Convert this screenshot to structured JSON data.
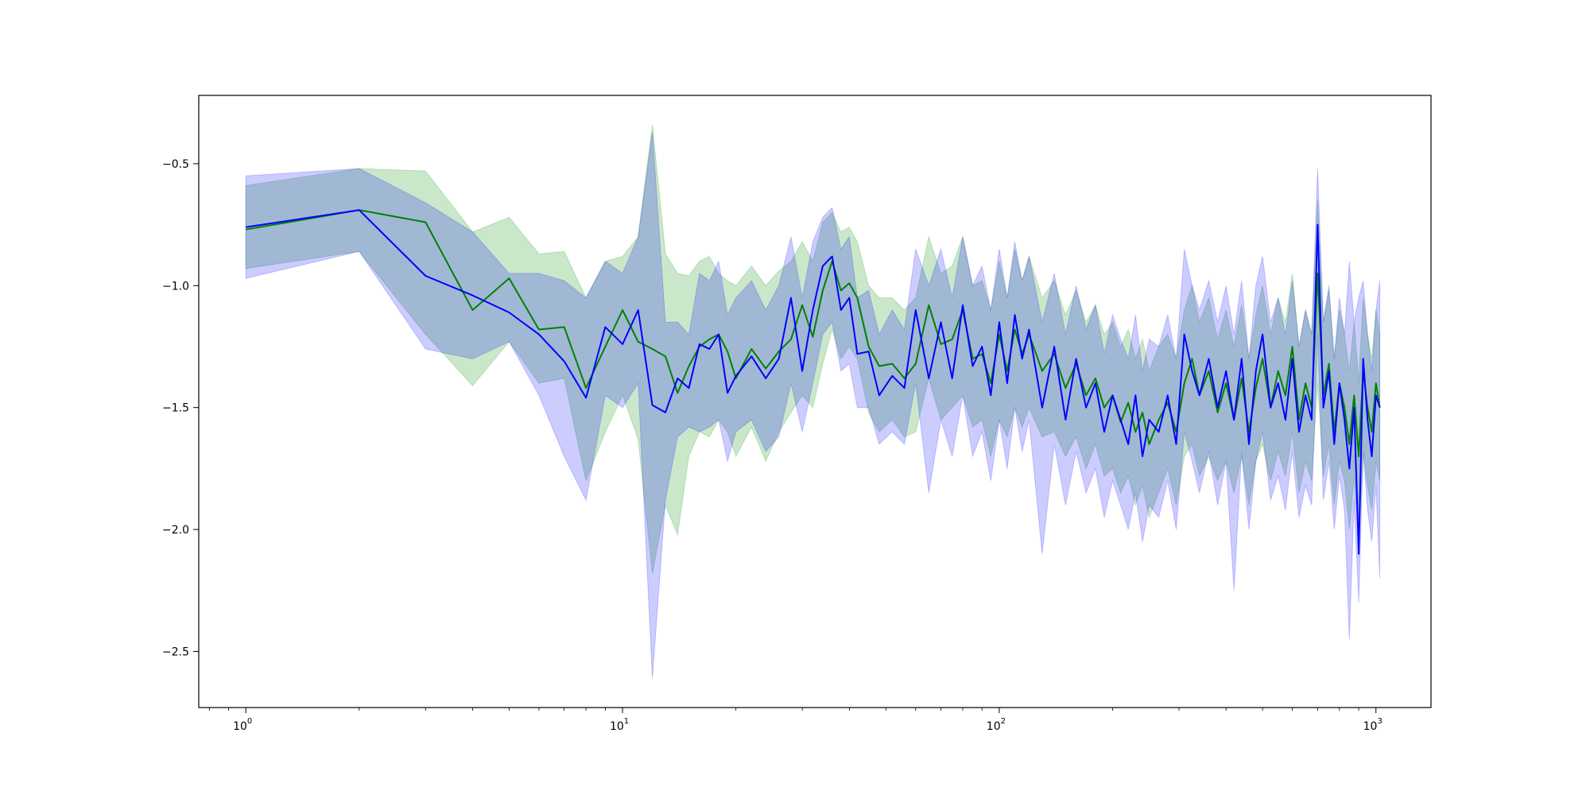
{
  "chart_data": {
    "type": "line",
    "title": "",
    "xlabel": "",
    "ylabel": "",
    "xscale": "log",
    "xlim": [
      0.75,
      1400
    ],
    "ylim": [
      -2.73,
      -0.22
    ],
    "grid": false,
    "legend": "none",
    "x_ticks": [
      {
        "base": "10",
        "exp": "0",
        "value": 1
      },
      {
        "base": "10",
        "exp": "1",
        "value": 10
      },
      {
        "base": "10",
        "exp": "2",
        "value": 100
      },
      {
        "base": "10",
        "exp": "3",
        "value": 1000
      }
    ],
    "y_ticks": [
      {
        "label": "−0.5",
        "value": -0.5
      },
      {
        "label": "−1.0",
        "value": -1.0
      },
      {
        "label": "−1.5",
        "value": -1.5
      },
      {
        "label": "−2.0",
        "value": -2.0
      },
      {
        "label": "−2.5",
        "value": -2.5
      }
    ],
    "series": [
      {
        "color": "#008000",
        "band_color": "#2ca02c",
        "band_opacity": 0.25,
        "x": [
          1,
          2,
          3,
          4,
          5,
          6,
          7,
          8,
          9,
          10,
          11,
          12,
          13,
          14,
          15,
          16,
          17,
          18,
          19,
          20,
          22,
          24,
          26,
          28,
          30,
          32,
          34,
          36,
          38,
          40,
          42,
          45,
          48,
          52,
          56,
          60,
          65,
          70,
          75,
          80,
          85,
          90,
          95,
          100,
          105,
          110,
          115,
          120,
          130,
          140,
          150,
          160,
          170,
          180,
          190,
          200,
          210,
          220,
          230,
          240,
          250,
          265,
          280,
          295,
          310,
          325,
          340,
          360,
          380,
          400,
          420,
          440,
          460,
          480,
          500,
          525,
          550,
          575,
          600,
          625,
          650,
          675,
          700,
          725,
          750,
          775,
          800,
          825,
          850,
          875,
          900,
          925,
          950,
          975,
          1000,
          1024
        ],
        "y": [
          -0.77,
          -0.69,
          -0.74,
          -1.1,
          -0.97,
          -1.18,
          -1.17,
          -1.42,
          -1.25,
          -1.1,
          -1.23,
          -1.26,
          -1.29,
          -1.44,
          -1.33,
          -1.25,
          -1.22,
          -1.2,
          -1.27,
          -1.38,
          -1.26,
          -1.34,
          -1.27,
          -1.22,
          -1.08,
          -1.21,
          -1.02,
          -0.9,
          -1.02,
          -0.99,
          -1.05,
          -1.25,
          -1.33,
          -1.32,
          -1.38,
          -1.32,
          -1.08,
          -1.24,
          -1.22,
          -1.1,
          -1.3,
          -1.28,
          -1.4,
          -1.2,
          -1.35,
          -1.18,
          -1.28,
          -1.2,
          -1.35,
          -1.28,
          -1.42,
          -1.32,
          -1.45,
          -1.38,
          -1.5,
          -1.45,
          -1.56,
          -1.48,
          -1.6,
          -1.52,
          -1.65,
          -1.55,
          -1.48,
          -1.6,
          -1.4,
          -1.3,
          -1.45,
          -1.35,
          -1.52,
          -1.4,
          -1.55,
          -1.38,
          -1.6,
          -1.42,
          -1.3,
          -1.5,
          -1.35,
          -1.45,
          -1.25,
          -1.55,
          -1.4,
          -1.5,
          -0.95,
          -1.45,
          -1.32,
          -1.6,
          -1.4,
          -1.5,
          -1.65,
          -1.45,
          -1.7,
          -1.35,
          -1.5,
          -1.6,
          -1.4,
          -1.5
        ],
        "y_lower": [
          -0.93,
          -0.86,
          -1.2,
          -1.41,
          -1.23,
          -1.4,
          -1.38,
          -1.8,
          -1.6,
          -1.45,
          -1.63,
          -2.18,
          -1.9,
          -2.02,
          -1.7,
          -1.6,
          -1.62,
          -1.55,
          -1.6,
          -1.7,
          -1.58,
          -1.72,
          -1.6,
          -1.52,
          -1.45,
          -1.5,
          -1.32,
          -1.18,
          -1.3,
          -1.25,
          -1.3,
          -1.52,
          -1.6,
          -1.55,
          -1.62,
          -1.6,
          -1.38,
          -1.55,
          -1.5,
          -1.45,
          -1.58,
          -1.55,
          -1.7,
          -1.55,
          -1.62,
          -1.5,
          -1.58,
          -1.5,
          -1.62,
          -1.6,
          -1.7,
          -1.62,
          -1.75,
          -1.65,
          -1.78,
          -1.75,
          -1.85,
          -1.78,
          -1.9,
          -1.82,
          -1.95,
          -1.85,
          -1.75,
          -1.9,
          -1.7,
          -1.65,
          -1.78,
          -1.7,
          -1.8,
          -1.72,
          -1.85,
          -1.7,
          -1.9,
          -1.72,
          -1.65,
          -1.8,
          -1.68,
          -1.78,
          -1.6,
          -1.85,
          -1.72,
          -1.8,
          -1.4,
          -1.78,
          -1.65,
          -1.9,
          -1.72,
          -1.8,
          -2.0,
          -1.78,
          -2.05,
          -1.68,
          -1.82,
          -1.92,
          -1.72,
          -1.8
        ],
        "y_upper": [
          -0.59,
          -0.52,
          -0.53,
          -0.78,
          -0.72,
          -0.87,
          -0.86,
          -1.05,
          -0.9,
          -0.88,
          -0.8,
          -0.34,
          -0.87,
          -0.95,
          -0.96,
          -0.9,
          -0.88,
          -0.95,
          -0.98,
          -1.0,
          -0.92,
          -1.0,
          -0.94,
          -0.9,
          -0.82,
          -0.9,
          -0.74,
          -0.7,
          -0.78,
          -0.76,
          -0.82,
          -1.0,
          -1.05,
          -1.05,
          -1.1,
          -1.05,
          -0.8,
          -0.95,
          -0.92,
          -0.8,
          -1.0,
          -0.98,
          -1.1,
          -0.9,
          -1.05,
          -0.85,
          -0.98,
          -0.88,
          -1.05,
          -0.98,
          -1.12,
          -1.02,
          -1.15,
          -1.08,
          -1.2,
          -1.15,
          -1.25,
          -1.18,
          -1.3,
          -1.22,
          -1.35,
          -1.25,
          -1.2,
          -1.3,
          -1.1,
          -1.0,
          -1.15,
          -1.05,
          -1.22,
          -1.1,
          -1.25,
          -1.08,
          -1.3,
          -1.12,
          -1.0,
          -1.2,
          -1.05,
          -1.15,
          -0.95,
          -1.25,
          -1.1,
          -1.2,
          -0.65,
          -1.15,
          -1.02,
          -1.3,
          -1.1,
          -1.2,
          -1.35,
          -1.15,
          -1.4,
          -1.05,
          -1.2,
          -1.3,
          -1.1,
          -1.2
        ]
      },
      {
        "color": "#0000ff",
        "band_color": "#0000ff",
        "band_opacity": 0.2,
        "x": [
          1,
          2,
          3,
          4,
          5,
          6,
          7,
          8,
          9,
          10,
          11,
          12,
          13,
          14,
          15,
          16,
          17,
          18,
          19,
          20,
          22,
          24,
          26,
          28,
          30,
          32,
          34,
          36,
          38,
          40,
          42,
          45,
          48,
          52,
          56,
          60,
          65,
          70,
          75,
          80,
          85,
          90,
          95,
          100,
          105,
          110,
          115,
          120,
          130,
          140,
          150,
          160,
          170,
          180,
          190,
          200,
          210,
          220,
          230,
          240,
          250,
          265,
          280,
          295,
          310,
          325,
          340,
          360,
          380,
          400,
          420,
          440,
          460,
          480,
          500,
          525,
          550,
          575,
          600,
          625,
          650,
          675,
          700,
          725,
          750,
          775,
          800,
          825,
          850,
          875,
          900,
          925,
          950,
          975,
          1000,
          1024
        ],
        "y": [
          -0.76,
          -0.69,
          -0.96,
          -1.04,
          -1.11,
          -1.2,
          -1.31,
          -1.46,
          -1.17,
          -1.24,
          -1.1,
          -1.49,
          -1.52,
          -1.38,
          -1.42,
          -1.24,
          -1.26,
          -1.2,
          -1.44,
          -1.37,
          -1.29,
          -1.38,
          -1.3,
          -1.05,
          -1.35,
          -1.1,
          -0.92,
          -0.88,
          -1.1,
          -1.05,
          -1.28,
          -1.27,
          -1.45,
          -1.37,
          -1.42,
          -1.1,
          -1.38,
          -1.15,
          -1.38,
          -1.08,
          -1.33,
          -1.25,
          -1.45,
          -1.15,
          -1.4,
          -1.12,
          -1.3,
          -1.18,
          -1.5,
          -1.25,
          -1.55,
          -1.3,
          -1.5,
          -1.4,
          -1.6,
          -1.45,
          -1.55,
          -1.65,
          -1.45,
          -1.7,
          -1.55,
          -1.6,
          -1.45,
          -1.65,
          -1.2,
          -1.35,
          -1.45,
          -1.3,
          -1.5,
          -1.35,
          -1.55,
          -1.3,
          -1.65,
          -1.35,
          -1.2,
          -1.5,
          -1.4,
          -1.55,
          -1.3,
          -1.6,
          -1.45,
          -1.55,
          -0.75,
          -1.5,
          -1.35,
          -1.65,
          -1.4,
          -1.55,
          -1.75,
          -1.5,
          -2.1,
          -1.3,
          -1.55,
          -1.7,
          -1.45,
          -1.5
        ],
        "y_lower": [
          -0.97,
          -0.86,
          -1.26,
          -1.3,
          -1.23,
          -1.45,
          -1.7,
          -1.88,
          -1.45,
          -1.5,
          -1.4,
          -2.61,
          -1.88,
          -1.62,
          -1.58,
          -1.6,
          -1.58,
          -1.55,
          -1.72,
          -1.6,
          -1.55,
          -1.68,
          -1.62,
          -1.4,
          -1.6,
          -1.4,
          -1.2,
          -1.15,
          -1.35,
          -1.32,
          -1.5,
          -1.5,
          -1.65,
          -1.6,
          -1.65,
          -1.4,
          -1.85,
          -1.55,
          -1.7,
          -1.45,
          -1.7,
          -1.6,
          -1.8,
          -1.55,
          -1.75,
          -1.5,
          -1.68,
          -1.55,
          -2.1,
          -1.65,
          -1.9,
          -1.68,
          -1.85,
          -1.75,
          -1.95,
          -1.8,
          -1.9,
          -2.0,
          -1.85,
          -2.05,
          -1.9,
          -1.95,
          -1.8,
          -2.0,
          -1.6,
          -1.72,
          -1.85,
          -1.68,
          -1.9,
          -1.72,
          -2.25,
          -1.68,
          -2.0,
          -1.72,
          -1.6,
          -1.88,
          -1.78,
          -1.92,
          -1.68,
          -1.95,
          -1.82,
          -1.9,
          -1.2,
          -1.88,
          -1.72,
          -2.0,
          -1.78,
          -1.92,
          -2.45,
          -1.88,
          -2.3,
          -1.68,
          -1.92,
          -2.05,
          -1.82,
          -2.2
        ],
        "y_upper": [
          -0.55,
          -0.52,
          -0.66,
          -0.78,
          -0.95,
          -0.95,
          -0.98,
          -1.05,
          -0.9,
          -0.95,
          -0.8,
          -0.37,
          -1.15,
          -1.15,
          -1.2,
          -0.95,
          -0.98,
          -0.9,
          -1.12,
          -1.05,
          -0.98,
          -1.1,
          -1.0,
          -0.8,
          -1.05,
          -0.82,
          -0.72,
          -0.68,
          -0.85,
          -0.8,
          -1.05,
          -1.02,
          -1.2,
          -1.1,
          -1.18,
          -0.85,
          -1.0,
          -0.85,
          -1.05,
          -0.8,
          -1.0,
          -0.92,
          -1.1,
          -0.85,
          -1.05,
          -0.82,
          -0.98,
          -0.88,
          -1.15,
          -0.95,
          -1.2,
          -1.0,
          -1.18,
          -1.08,
          -1.28,
          -1.12,
          -1.22,
          -1.3,
          -1.12,
          -1.35,
          -1.22,
          -1.25,
          -1.12,
          -1.3,
          -0.85,
          -1.0,
          -1.1,
          -0.98,
          -1.15,
          -1.0,
          -1.2,
          -0.98,
          -1.3,
          -1.0,
          -0.88,
          -1.15,
          -1.05,
          -1.2,
          -0.98,
          -1.25,
          -1.1,
          -1.2,
          -0.52,
          -1.15,
          -1.0,
          -1.3,
          -1.05,
          -1.2,
          -0.9,
          -1.15,
          -1.05,
          -0.98,
          -1.2,
          -1.35,
          -1.1,
          -0.98
        ]
      }
    ]
  }
}
